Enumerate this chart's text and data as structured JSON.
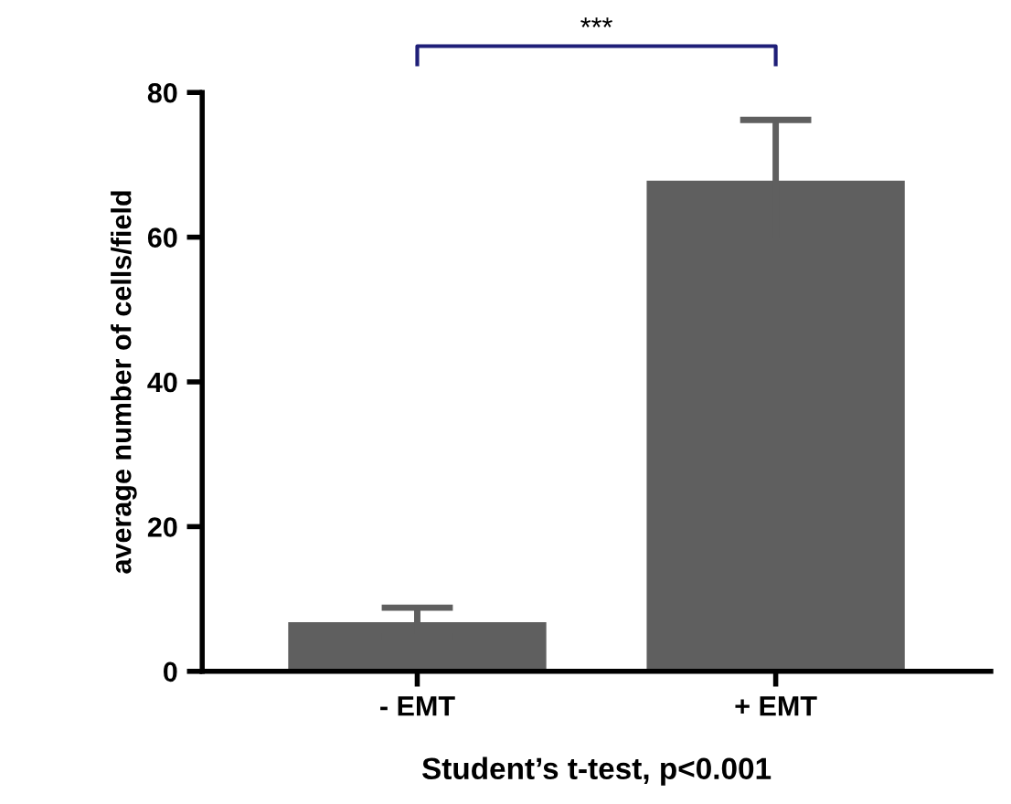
{
  "chart_data": {
    "type": "bar",
    "categories": [
      "- EMT",
      "+ EMT"
    ],
    "values": [
      6.8,
      67.8
    ],
    "errors": [
      2.0,
      8.4
    ],
    "color": "#5f5f5f",
    "ylabel": "average number of cells/field",
    "xlabel": "Student’s t-test, p<0.001",
    "ylim": [
      0,
      80
    ],
    "yticks": [
      0,
      20,
      40,
      60,
      80
    ],
    "annotations": [
      "***"
    ],
    "grid": false,
    "legend": false
  }
}
